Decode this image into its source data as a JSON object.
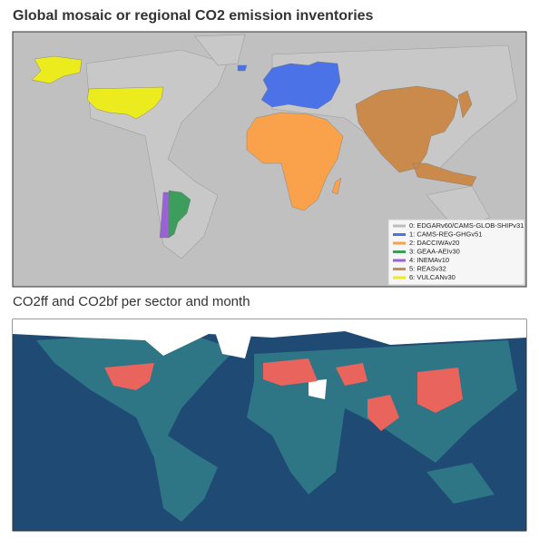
{
  "panels": [
    {
      "title": "Global mosaic or regional CO2 emission inventories",
      "legend": [
        {
          "label": "0: EDGARv60/CAMS-GLOB-SHIPv31",
          "color": "#bdbdbd"
        },
        {
          "label": "1: CAMS-REG-GHGv51",
          "color": "#4c72e8"
        },
        {
          "label": "2: DACCIWAv20",
          "color": "#f9a24b"
        },
        {
          "label": "3: GEAA-AEIv30",
          "color": "#3d9d5c"
        },
        {
          "label": "4: INEMAv10",
          "color": "#9b62d8"
        },
        {
          "label": "5: REASv32",
          "color": "#c98a4c"
        },
        {
          "label": "6: VULCANv30",
          "color": "#ebeb1e"
        }
      ]
    },
    {
      "title": "CO2ff and CO2bf per sector and month"
    }
  ]
}
